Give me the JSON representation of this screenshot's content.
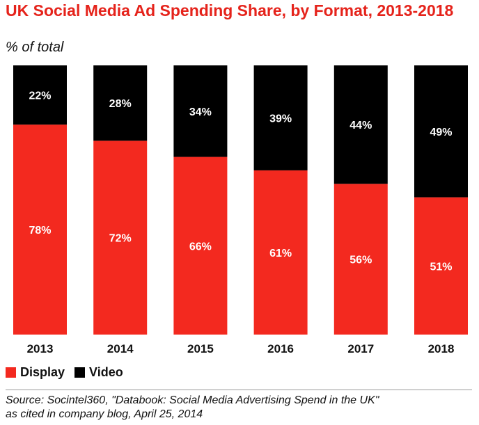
{
  "chart_data": {
    "type": "bar",
    "stacked": true,
    "title": "UK Social Media Ad Spending Share, by Format, 2013-2018",
    "subtitle": "% of total",
    "categories": [
      "2013",
      "2014",
      "2015",
      "2016",
      "2017",
      "2018"
    ],
    "series": [
      {
        "name": "Display",
        "color": "#f3291f",
        "values": [
          78,
          72,
          66,
          61,
          56,
          51
        ]
      },
      {
        "name": "Video",
        "color": "#000000",
        "values": [
          22,
          28,
          34,
          39,
          44,
          49
        ]
      }
    ],
    "ylim": [
      0,
      100
    ],
    "value_suffix": "%",
    "grid": false,
    "legend_position": "bottom-left"
  },
  "source": {
    "line1": "Source: Socintel360, \"Databook: Social Media Advertising Spend in the UK\"",
    "line2": "as cited in company blog, April 25, 2014"
  }
}
